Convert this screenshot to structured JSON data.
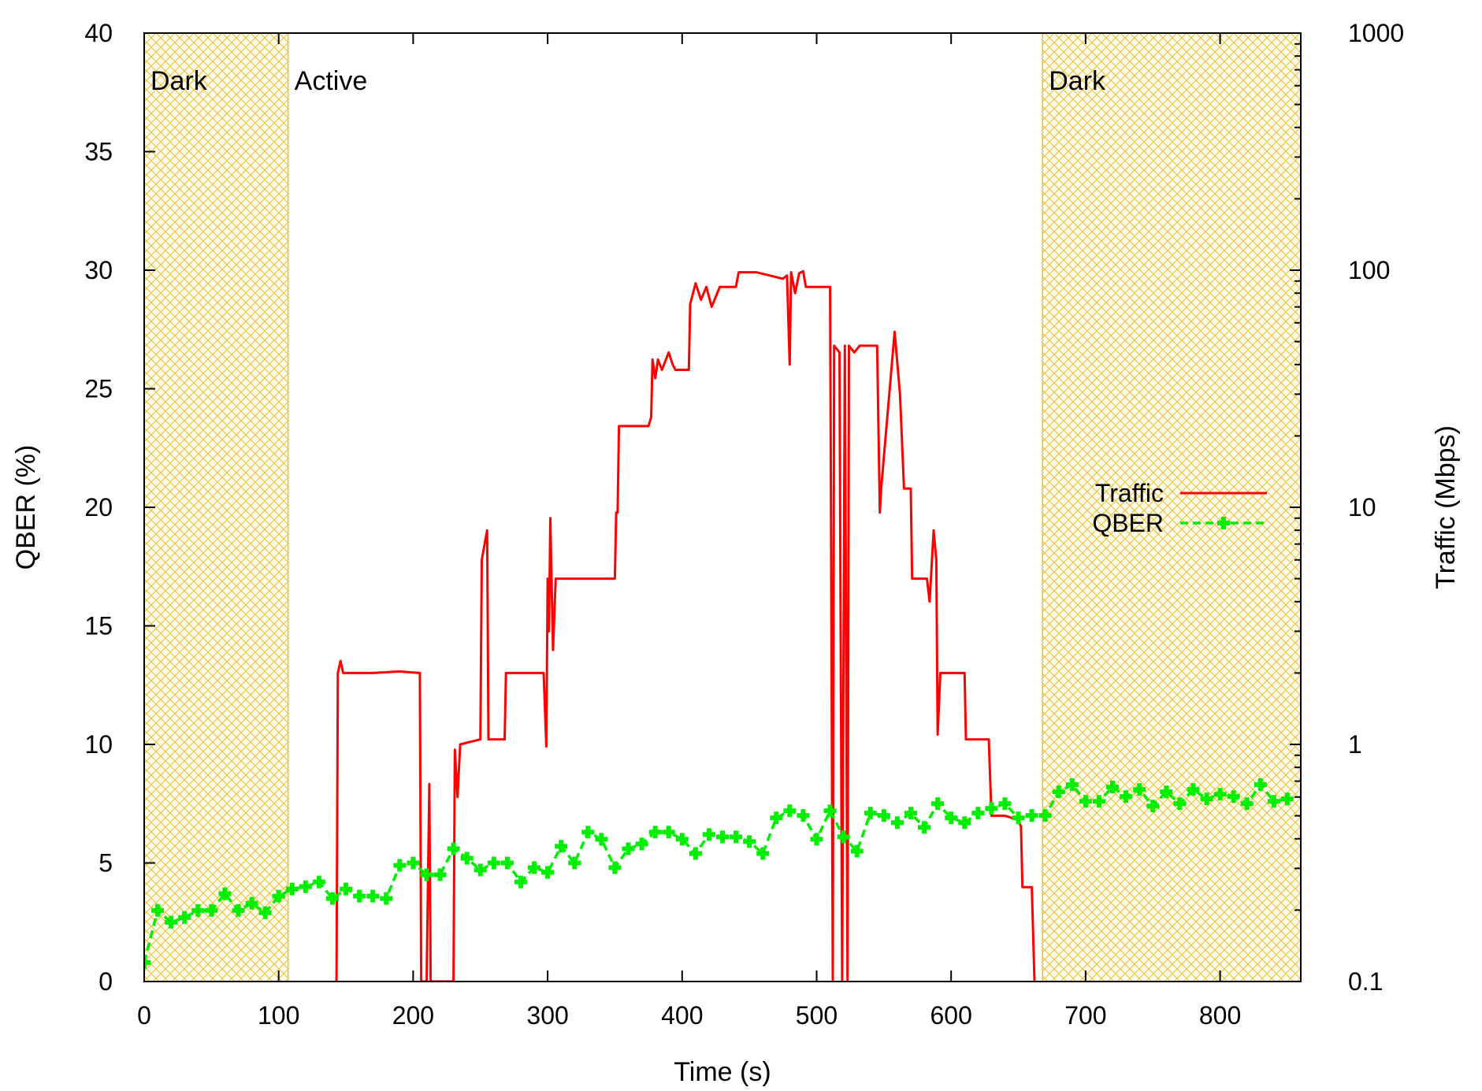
{
  "chart_data": {
    "type": "line",
    "xlabel": "Time (s)",
    "ylabel": "QBER (%)",
    "y2label": "Traffic (Mbps)",
    "xlim": [
      0,
      860
    ],
    "ylim": [
      0,
      40
    ],
    "y2lim": [
      0.1,
      1000
    ],
    "y2_scale": "log",
    "grid": false,
    "legend_position": "right",
    "x_ticks": [
      "0",
      "100",
      "200",
      "300",
      "400",
      "500",
      "600",
      "700",
      "800"
    ],
    "y_ticks": [
      "0",
      "5",
      "10",
      "15",
      "20",
      "25",
      "30",
      "35",
      "40"
    ],
    "y2_ticks": [
      "0.1",
      "1",
      "10",
      "100",
      "1000"
    ],
    "regions": [
      {
        "label": "Dark",
        "x": [
          0,
          107
        ],
        "color": "#f0c030"
      },
      {
        "label": "Active",
        "x": [
          107,
          668
        ],
        "color": "#ffffff"
      },
      {
        "label": "Dark",
        "x": [
          668,
          860
        ],
        "color": "#f0c030"
      }
    ],
    "series": [
      {
        "name": "Traffic",
        "color": "#ff0000",
        "axis": "y2",
        "style": "solid",
        "points": [
          [
            143,
            0.1
          ],
          [
            144,
            2.0
          ],
          [
            146,
            2.25
          ],
          [
            148,
            2.0
          ],
          [
            170,
            2.0
          ],
          [
            190,
            2.03
          ],
          [
            205,
            2.0
          ],
          [
            206,
            0.1
          ],
          [
            210,
            0.1
          ],
          [
            212,
            0.68
          ],
          [
            213,
            0.1
          ],
          [
            215,
            0.1
          ],
          [
            230,
            0.1
          ],
          [
            231,
            0.95
          ],
          [
            233,
            0.6
          ],
          [
            235,
            1.0
          ],
          [
            250,
            1.05
          ],
          [
            251,
            6.0
          ],
          [
            255,
            8.0
          ],
          [
            256,
            1.05
          ],
          [
            268,
            1.05
          ],
          [
            269,
            2.0
          ],
          [
            297,
            2.0
          ],
          [
            299,
            0.98
          ],
          [
            300,
            5.0
          ],
          [
            301,
            3.0
          ],
          [
            302,
            9.0
          ],
          [
            304,
            2.5
          ],
          [
            306,
            5.0
          ],
          [
            350,
            5.0
          ],
          [
            351,
            9.5
          ],
          [
            352,
            9.5
          ],
          [
            353,
            22.0
          ],
          [
            375,
            22.0
          ],
          [
            377,
            24.0
          ],
          [
            378,
            42.0
          ],
          [
            380,
            35.0
          ],
          [
            382,
            42.0
          ],
          [
            385,
            38.0
          ],
          [
            390,
            45.0
          ],
          [
            393,
            40.0
          ],
          [
            395,
            38.0
          ],
          [
            405,
            38.0
          ],
          [
            406,
            72.0
          ],
          [
            410,
            88.0
          ],
          [
            414,
            75.0
          ],
          [
            418,
            85.0
          ],
          [
            422,
            70.0
          ],
          [
            428,
            85.0
          ],
          [
            440,
            85.0
          ],
          [
            442,
            98.0
          ],
          [
            455,
            98.0
          ],
          [
            465,
            95.0
          ],
          [
            475,
            92.0
          ],
          [
            478,
            95.0
          ],
          [
            480,
            40.0
          ],
          [
            481,
            98.0
          ],
          [
            484,
            80.0
          ],
          [
            487,
            97.0
          ],
          [
            490,
            99.0
          ],
          [
            492,
            85.0
          ],
          [
            493,
            85.0
          ],
          [
            510,
            85.0
          ],
          [
            512,
            0.1
          ],
          [
            513,
            48.0
          ],
          [
            517,
            45.0
          ],
          [
            519,
            0.1
          ],
          [
            521,
            48.0
          ],
          [
            523,
            0.1
          ],
          [
            524,
            48.0
          ],
          [
            528,
            45.0
          ],
          [
            532,
            48.0
          ],
          [
            545,
            48.0
          ],
          [
            547,
            9.5
          ],
          [
            548,
            12.0
          ],
          [
            558,
            55.0
          ],
          [
            562,
            30.0
          ],
          [
            565,
            12.0
          ],
          [
            570,
            12.0
          ],
          [
            571,
            5.0
          ],
          [
            582,
            5.0
          ],
          [
            584,
            4.0
          ],
          [
            587,
            8.0
          ],
          [
            589,
            6.0
          ],
          [
            590,
            1.1
          ],
          [
            592,
            2.0
          ],
          [
            610,
            2.0
          ],
          [
            611,
            1.05
          ],
          [
            628,
            1.05
          ],
          [
            630,
            0.5
          ],
          [
            640,
            0.5
          ],
          [
            650,
            0.48
          ],
          [
            652,
            0.45
          ],
          [
            653,
            0.25
          ],
          [
            660,
            0.25
          ],
          [
            662,
            0.1
          ]
        ]
      },
      {
        "name": "QBER",
        "color": "#00ee00",
        "axis": "y",
        "style": "dashed",
        "points": [
          [
            0,
            0.8
          ],
          [
            10,
            3.0
          ],
          [
            20,
            2.5
          ],
          [
            30,
            2.7
          ],
          [
            40,
            3.0
          ],
          [
            50,
            3.0
          ],
          [
            60,
            3.7
          ],
          [
            70,
            3.0
          ],
          [
            80,
            3.3
          ],
          [
            90,
            2.9
          ],
          [
            100,
            3.6
          ],
          [
            110,
            3.9
          ],
          [
            120,
            4.0
          ],
          [
            130,
            4.2
          ],
          [
            140,
            3.5
          ],
          [
            150,
            3.9
          ],
          [
            160,
            3.6
          ],
          [
            170,
            3.6
          ],
          [
            180,
            3.5
          ],
          [
            190,
            4.9
          ],
          [
            200,
            5.0
          ],
          [
            210,
            4.5
          ],
          [
            220,
            4.5
          ],
          [
            230,
            5.6
          ],
          [
            240,
            5.2
          ],
          [
            250,
            4.7
          ],
          [
            260,
            5.0
          ],
          [
            270,
            5.0
          ],
          [
            280,
            4.2
          ],
          [
            290,
            4.8
          ],
          [
            300,
            4.6
          ],
          [
            310,
            5.7
          ],
          [
            320,
            5.0
          ],
          [
            330,
            6.3
          ],
          [
            340,
            6.0
          ],
          [
            350,
            4.8
          ],
          [
            360,
            5.6
          ],
          [
            370,
            5.8
          ],
          [
            380,
            6.3
          ],
          [
            390,
            6.3
          ],
          [
            400,
            6.0
          ],
          [
            410,
            5.4
          ],
          [
            420,
            6.2
          ],
          [
            430,
            6.1
          ],
          [
            440,
            6.1
          ],
          [
            450,
            5.9
          ],
          [
            460,
            5.4
          ],
          [
            470,
            6.9
          ],
          [
            480,
            7.2
          ],
          [
            490,
            7.0
          ],
          [
            500,
            6.0
          ],
          [
            510,
            7.2
          ],
          [
            520,
            6.1
          ],
          [
            530,
            5.5
          ],
          [
            540,
            7.1
          ],
          [
            550,
            7.0
          ],
          [
            560,
            6.7
          ],
          [
            570,
            7.1
          ],
          [
            580,
            6.5
          ],
          [
            590,
            7.5
          ],
          [
            600,
            6.9
          ],
          [
            610,
            6.7
          ],
          [
            620,
            7.1
          ],
          [
            630,
            7.3
          ],
          [
            640,
            7.5
          ],
          [
            650,
            6.9
          ],
          [
            660,
            7.0
          ],
          [
            670,
            7.0
          ],
          [
            680,
            8.0
          ],
          [
            690,
            8.3
          ],
          [
            700,
            7.6
          ],
          [
            710,
            7.6
          ],
          [
            720,
            8.2
          ],
          [
            730,
            7.8
          ],
          [
            740,
            8.1
          ],
          [
            750,
            7.4
          ],
          [
            760,
            8.0
          ],
          [
            770,
            7.5
          ],
          [
            780,
            8.1
          ],
          [
            790,
            7.7
          ],
          [
            800,
            7.9
          ],
          [
            810,
            7.8
          ],
          [
            820,
            7.5
          ],
          [
            830,
            8.3
          ],
          [
            840,
            7.6
          ],
          [
            850,
            7.7
          ]
        ]
      }
    ]
  }
}
